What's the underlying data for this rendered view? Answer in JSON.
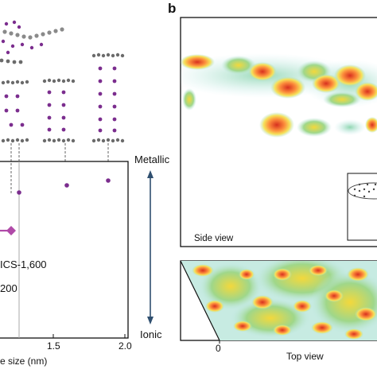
{
  "panel_b_letter": "b",
  "scale": {
    "top": "Metallic",
    "bottom": "Ionic"
  },
  "panel_a_plot": {
    "xlabel_visible": "e size (nm)",
    "x_ticks": [
      "1.5",
      "2.0"
    ],
    "labels": [
      "ICS-1,600",
      "200"
    ]
  },
  "panel_b": {
    "side_view_label": "Side view",
    "top_view_label": "Top view",
    "top_axis_zero": "0"
  },
  "colors": {
    "point": "#7b2d8e",
    "marker": "#b04aa8",
    "vline": "#aaaaaa",
    "atom_gray": "#6b6b6b",
    "arrow": "#2f4f6f"
  },
  "chart_data": {
    "type": "scatter",
    "title": "",
    "xlabel": "e size (nm)",
    "ylabel": "",
    "xlim": [
      0.95,
      2.0
    ],
    "x_ticks": [
      1.5,
      2.0
    ],
    "points": [
      {
        "x": 1.25,
        "y": 0.62
      },
      {
        "x": 1.58,
        "y": 0.68
      },
      {
        "x": 1.87,
        "y": 0.72
      }
    ],
    "highlight": {
      "x": 1.18,
      "y": 0.35,
      "style": "diamond-with-line"
    },
    "vline_x": 1.22,
    "annotations": [
      "ICS-1,600",
      "200"
    ]
  }
}
